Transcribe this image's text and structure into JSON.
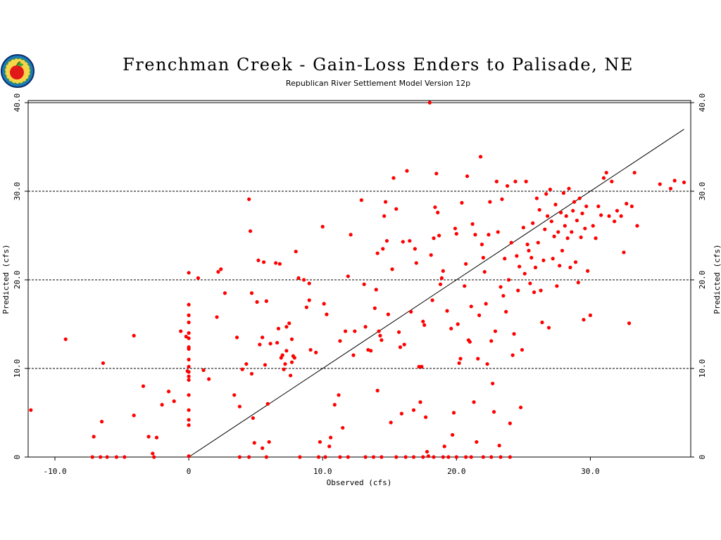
{
  "chart_data": {
    "type": "scatter",
    "title": "Frenchman Creek - Gain-Loss Enders to Palisade, NE",
    "subtitle": "Republican River Settlement Model Version 12p",
    "xlabel": "Observed (cfs)",
    "ylabel": "Predicted (cfs)",
    "ylabel_right": "Predicted (cfs)",
    "xlim": [
      -12,
      37.5
    ],
    "ylim": [
      0,
      40
    ],
    "x_ticks": [
      {
        "value": -10,
        "label": "-10.0"
      },
      {
        "value": 0,
        "label": "0"
      },
      {
        "value": 10,
        "label": "10.0"
      },
      {
        "value": 20,
        "label": "20.0"
      },
      {
        "value": 30,
        "label": "30.0"
      }
    ],
    "y_ticks": [
      {
        "value": 0,
        "label": "0"
      },
      {
        "value": 10,
        "label": "10.0"
      },
      {
        "value": 20,
        "label": "20.0"
      },
      {
        "value": 30,
        "label": "30.0"
      },
      {
        "value": 40,
        "label": "40.0"
      }
    ],
    "grid": "horizontal dashed",
    "reference_line": {
      "from": [
        0,
        0
      ],
      "to": [
        37,
        37
      ]
    },
    "marker_color": "#ff0000",
    "points": [
      [
        -11.8,
        5.3
      ],
      [
        -9.2,
        13.3
      ],
      [
        -7.1,
        2.3
      ],
      [
        -6.5,
        4.0
      ],
      [
        -6.4,
        10.6
      ],
      [
        -4.1,
        13.7
      ],
      [
        -4.1,
        4.7
      ],
      [
        -3.4,
        8.0
      ],
      [
        -3.0,
        2.3
      ],
      [
        -2.4,
        2.2
      ],
      [
        -2.0,
        5.9
      ],
      [
        -1.5,
        7.4
      ],
      [
        -1.1,
        6.3
      ],
      [
        -0.6,
        14.2
      ],
      [
        -0.2,
        13.6
      ],
      [
        -0.1,
        9.7
      ],
      [
        0.0,
        20.8
      ],
      [
        0.0,
        17.2
      ],
      [
        0.0,
        16.0
      ],
      [
        0.0,
        15.2
      ],
      [
        0.0,
        14.0
      ],
      [
        0.0,
        13.4
      ],
      [
        0.0,
        12.4
      ],
      [
        0.0,
        12.2
      ],
      [
        0.0,
        11.0
      ],
      [
        0.0,
        10.2
      ],
      [
        0.0,
        9.6
      ],
      [
        0.0,
        9.1
      ],
      [
        0.0,
        8.7
      ],
      [
        0.0,
        7.0
      ],
      [
        0.0,
        5.3
      ],
      [
        0.0,
        4.2
      ],
      [
        0.0,
        3.6
      ],
      [
        0.0,
        0.1
      ],
      [
        0.7,
        20.2
      ],
      [
        1.1,
        9.8
      ],
      [
        1.5,
        8.8
      ],
      [
        2.1,
        15.8
      ],
      [
        2.2,
        20.9
      ],
      [
        2.4,
        21.2
      ],
      [
        2.7,
        18.5
      ],
      [
        3.4,
        7.0
      ],
      [
        3.6,
        13.5
      ],
      [
        3.8,
        5.7
      ],
      [
        4.0,
        9.9
      ],
      [
        4.3,
        10.5
      ],
      [
        4.5,
        29.1
      ],
      [
        4.6,
        25.5
      ],
      [
        4.7,
        18.5
      ],
      [
        4.7,
        9.4
      ],
      [
        4.8,
        4.4
      ],
      [
        4.9,
        1.6
      ],
      [
        5.1,
        17.5
      ],
      [
        5.2,
        22.2
      ],
      [
        5.3,
        12.7
      ],
      [
        5.5,
        13.5
      ],
      [
        5.6,
        22.0
      ],
      [
        5.7,
        10.4
      ],
      [
        5.8,
        17.6
      ],
      [
        5.9,
        6.0
      ],
      [
        6.0,
        1.7
      ],
      [
        6.1,
        12.8
      ],
      [
        6.5,
        21.9
      ],
      [
        6.6,
        12.9
      ],
      [
        6.7,
        14.5
      ],
      [
        6.8,
        21.8
      ],
      [
        6.9,
        11.2
      ],
      [
        7.0,
        11.5
      ],
      [
        7.1,
        9.9
      ],
      [
        7.2,
        10.5
      ],
      [
        7.3,
        12.0
      ],
      [
        7.3,
        14.7
      ],
      [
        7.5,
        15.1
      ],
      [
        7.6,
        9.2
      ],
      [
        7.7,
        10.7
      ],
      [
        7.7,
        13.3
      ],
      [
        7.8,
        11.4
      ],
      [
        7.9,
        11.2
      ],
      [
        8.0,
        23.2
      ],
      [
        8.2,
        20.2
      ],
      [
        8.6,
        20.0
      ],
      [
        8.8,
        16.9
      ],
      [
        9.0,
        19.6
      ],
      [
        9.0,
        17.7
      ],
      [
        9.1,
        12.1
      ],
      [
        9.5,
        11.8
      ],
      [
        9.8,
        1.7
      ],
      [
        10.0,
        26.0
      ],
      [
        10.1,
        17.3
      ],
      [
        10.3,
        16.1
      ],
      [
        10.5,
        1.2
      ],
      [
        10.9,
        5.9
      ],
      [
        11.2,
        7.0
      ],
      [
        11.3,
        13.1
      ],
      [
        11.5,
        3.3
      ],
      [
        11.7,
        14.2
      ],
      [
        11.9,
        20.4
      ],
      [
        12.1,
        25.1
      ],
      [
        12.3,
        11.5
      ],
      [
        12.4,
        14.2
      ],
      [
        12.9,
        29.0
      ],
      [
        13.1,
        19.5
      ],
      [
        13.2,
        14.7
      ],
      [
        13.4,
        12.1
      ],
      [
        13.6,
        12.0
      ],
      [
        13.9,
        16.8
      ],
      [
        14.0,
        18.9
      ],
      [
        14.1,
        23.0
      ],
      [
        14.1,
        7.5
      ],
      [
        14.2,
        14.2
      ],
      [
        14.3,
        13.7
      ],
      [
        14.4,
        13.2
      ],
      [
        14.5,
        23.5
      ],
      [
        14.6,
        27.2
      ],
      [
        14.7,
        28.8
      ],
      [
        14.8,
        24.4
      ],
      [
        14.9,
        16.1
      ],
      [
        15.1,
        3.9
      ],
      [
        15.2,
        21.2
      ],
      [
        15.3,
        31.5
      ],
      [
        15.5,
        28.0
      ],
      [
        15.7,
        14.1
      ],
      [
        15.8,
        12.4
      ],
      [
        15.9,
        4.9
      ],
      [
        16.0,
        24.3
      ],
      [
        16.1,
        12.7
      ],
      [
        16.3,
        32.3
      ],
      [
        16.5,
        24.4
      ],
      [
        16.6,
        16.4
      ],
      [
        16.8,
        5.3
      ],
      [
        16.9,
        23.5
      ],
      [
        17.0,
        21.9
      ],
      [
        17.2,
        10.2
      ],
      [
        17.3,
        6.2
      ],
      [
        17.4,
        10.2
      ],
      [
        17.5,
        15.3
      ],
      [
        17.6,
        14.9
      ],
      [
        17.7,
        4.5
      ],
      [
        17.8,
        0.6
      ],
      [
        17.9,
        0.1
      ],
      [
        18.0,
        40.0
      ],
      [
        18.1,
        22.8
      ],
      [
        18.2,
        17.7
      ],
      [
        18.3,
        24.7
      ],
      [
        18.4,
        28.2
      ],
      [
        18.5,
        32.0
      ],
      [
        18.6,
        27.6
      ],
      [
        18.7,
        25.0
      ],
      [
        18.8,
        19.5
      ],
      [
        18.9,
        20.2
      ],
      [
        19.0,
        21.0
      ],
      [
        19.1,
        1.2
      ],
      [
        19.3,
        16.5
      ],
      [
        19.6,
        14.5
      ],
      [
        19.7,
        2.5
      ],
      [
        19.8,
        5.0
      ],
      [
        19.9,
        25.8
      ],
      [
        20.0,
        25.2
      ],
      [
        20.1,
        15.0
      ],
      [
        20.2,
        10.6
      ],
      [
        20.3,
        11.1
      ],
      [
        20.4,
        28.7
      ],
      [
        20.6,
        19.3
      ],
      [
        20.7,
        21.8
      ],
      [
        20.8,
        31.7
      ],
      [
        20.9,
        13.2
      ],
      [
        21.0,
        13.0
      ],
      [
        21.1,
        17.0
      ],
      [
        21.2,
        26.3
      ],
      [
        21.3,
        6.2
      ],
      [
        21.4,
        25.1
      ],
      [
        21.5,
        1.7
      ],
      [
        21.6,
        11.1
      ],
      [
        21.7,
        16.0
      ],
      [
        21.8,
        33.9
      ],
      [
        21.9,
        24.0
      ],
      [
        22.0,
        22.5
      ],
      [
        22.1,
        20.9
      ],
      [
        22.2,
        17.3
      ],
      [
        22.3,
        10.5
      ],
      [
        22.4,
        25.1
      ],
      [
        22.5,
        28.8
      ],
      [
        22.6,
        13.1
      ],
      [
        22.7,
        8.3
      ],
      [
        22.8,
        5.1
      ],
      [
        22.9,
        14.2
      ],
      [
        23.0,
        31.1
      ],
      [
        23.1,
        25.4
      ],
      [
        23.2,
        1.3
      ],
      [
        23.3,
        19.2
      ],
      [
        23.4,
        29.1
      ],
      [
        23.5,
        18.2
      ],
      [
        23.6,
        22.4
      ],
      [
        23.7,
        16.4
      ],
      [
        23.8,
        30.6
      ],
      [
        23.9,
        20.0
      ],
      [
        24.0,
        3.8
      ],
      [
        24.1,
        24.2
      ],
      [
        24.2,
        11.5
      ],
      [
        24.3,
        13.9
      ],
      [
        24.4,
        31.1
      ],
      [
        24.5,
        22.7
      ],
      [
        24.6,
        18.8
      ],
      [
        24.7,
        21.5
      ],
      [
        24.8,
        5.6
      ],
      [
        24.9,
        12.1
      ],
      [
        25.0,
        25.9
      ],
      [
        25.1,
        20.7
      ],
      [
        25.2,
        31.1
      ],
      [
        25.3,
        24.0
      ],
      [
        25.4,
        23.3
      ],
      [
        25.5,
        19.6
      ],
      [
        25.6,
        22.5
      ],
      [
        25.7,
        26.4
      ],
      [
        25.8,
        18.6
      ],
      [
        25.9,
        21.4
      ],
      [
        26.0,
        29.2
      ],
      [
        26.1,
        24.2
      ],
      [
        26.2,
        27.9
      ],
      [
        26.3,
        18.8
      ],
      [
        26.4,
        15.2
      ],
      [
        26.5,
        22.2
      ],
      [
        26.6,
        25.7
      ],
      [
        26.7,
        29.7
      ],
      [
        26.8,
        27.2
      ],
      [
        26.9,
        14.6
      ],
      [
        27.0,
        30.2
      ],
      [
        27.1,
        26.6
      ],
      [
        27.2,
        22.4
      ],
      [
        27.3,
        24.9
      ],
      [
        27.4,
        28.5
      ],
      [
        27.5,
        19.3
      ],
      [
        27.6,
        25.4
      ],
      [
        27.7,
        21.6
      ],
      [
        27.8,
        27.6
      ],
      [
        27.9,
        23.3
      ],
      [
        28.0,
        29.8
      ],
      [
        28.1,
        26.1
      ],
      [
        28.2,
        27.2
      ],
      [
        28.3,
        24.7
      ],
      [
        28.4,
        30.3
      ],
      [
        28.5,
        21.4
      ],
      [
        28.6,
        25.4
      ],
      [
        28.7,
        27.8
      ],
      [
        28.8,
        28.8
      ],
      [
        28.9,
        22.0
      ],
      [
        29.0,
        26.7
      ],
      [
        29.1,
        19.7
      ],
      [
        29.2,
        29.2
      ],
      [
        29.3,
        24.8
      ],
      [
        29.4,
        27.5
      ],
      [
        29.5,
        15.5
      ],
      [
        29.6,
        25.8
      ],
      [
        29.7,
        28.3
      ],
      [
        29.8,
        21.0
      ],
      [
        30.0,
        16.0
      ],
      [
        30.2,
        26.1
      ],
      [
        30.4,
        24.7
      ],
      [
        30.6,
        28.3
      ],
      [
        30.8,
        27.3
      ],
      [
        31.0,
        31.5
      ],
      [
        31.2,
        32.1
      ],
      [
        31.4,
        27.2
      ],
      [
        31.6,
        31.1
      ],
      [
        31.8,
        26.6
      ],
      [
        32.0,
        27.8
      ],
      [
        32.3,
        27.2
      ],
      [
        32.5,
        23.1
      ],
      [
        32.7,
        28.6
      ],
      [
        32.9,
        15.1
      ],
      [
        33.1,
        28.3
      ],
      [
        33.3,
        32.1
      ],
      [
        33.5,
        26.1
      ],
      [
        35.2,
        30.8
      ],
      [
        36.0,
        30.3
      ],
      [
        36.3,
        31.2
      ],
      [
        37.0,
        31.0
      ],
      [
        -7.2,
        0.0
      ],
      [
        -6.6,
        0.0
      ],
      [
        -6.1,
        0.0
      ],
      [
        -5.4,
        0.0
      ],
      [
        -4.8,
        0.0
      ],
      [
        -2.7,
        0.4
      ],
      [
        -2.6,
        0.0
      ],
      [
        3.8,
        0.0
      ],
      [
        4.5,
        0.0
      ],
      [
        5.5,
        1.0
      ],
      [
        5.8,
        0.0
      ],
      [
        8.3,
        0.0
      ],
      [
        9.7,
        0.0
      ],
      [
        10.2,
        0.0
      ],
      [
        10.6,
        2.2
      ],
      [
        11.3,
        0.0
      ],
      [
        11.9,
        0.0
      ],
      [
        13.2,
        0.0
      ],
      [
        13.8,
        0.0
      ],
      [
        14.4,
        0.0
      ],
      [
        15.5,
        0.0
      ],
      [
        16.2,
        0.0
      ],
      [
        16.8,
        0.0
      ],
      [
        17.5,
        0.0
      ],
      [
        18.3,
        0.0
      ],
      [
        19.0,
        0.0
      ],
      [
        19.4,
        0.0
      ],
      [
        20.0,
        0.0
      ],
      [
        20.7,
        0.0
      ],
      [
        21.1,
        0.0
      ],
      [
        22.0,
        0.0
      ],
      [
        22.6,
        0.0
      ],
      [
        23.3,
        0.0
      ],
      [
        24.0,
        0.0
      ]
    ]
  }
}
